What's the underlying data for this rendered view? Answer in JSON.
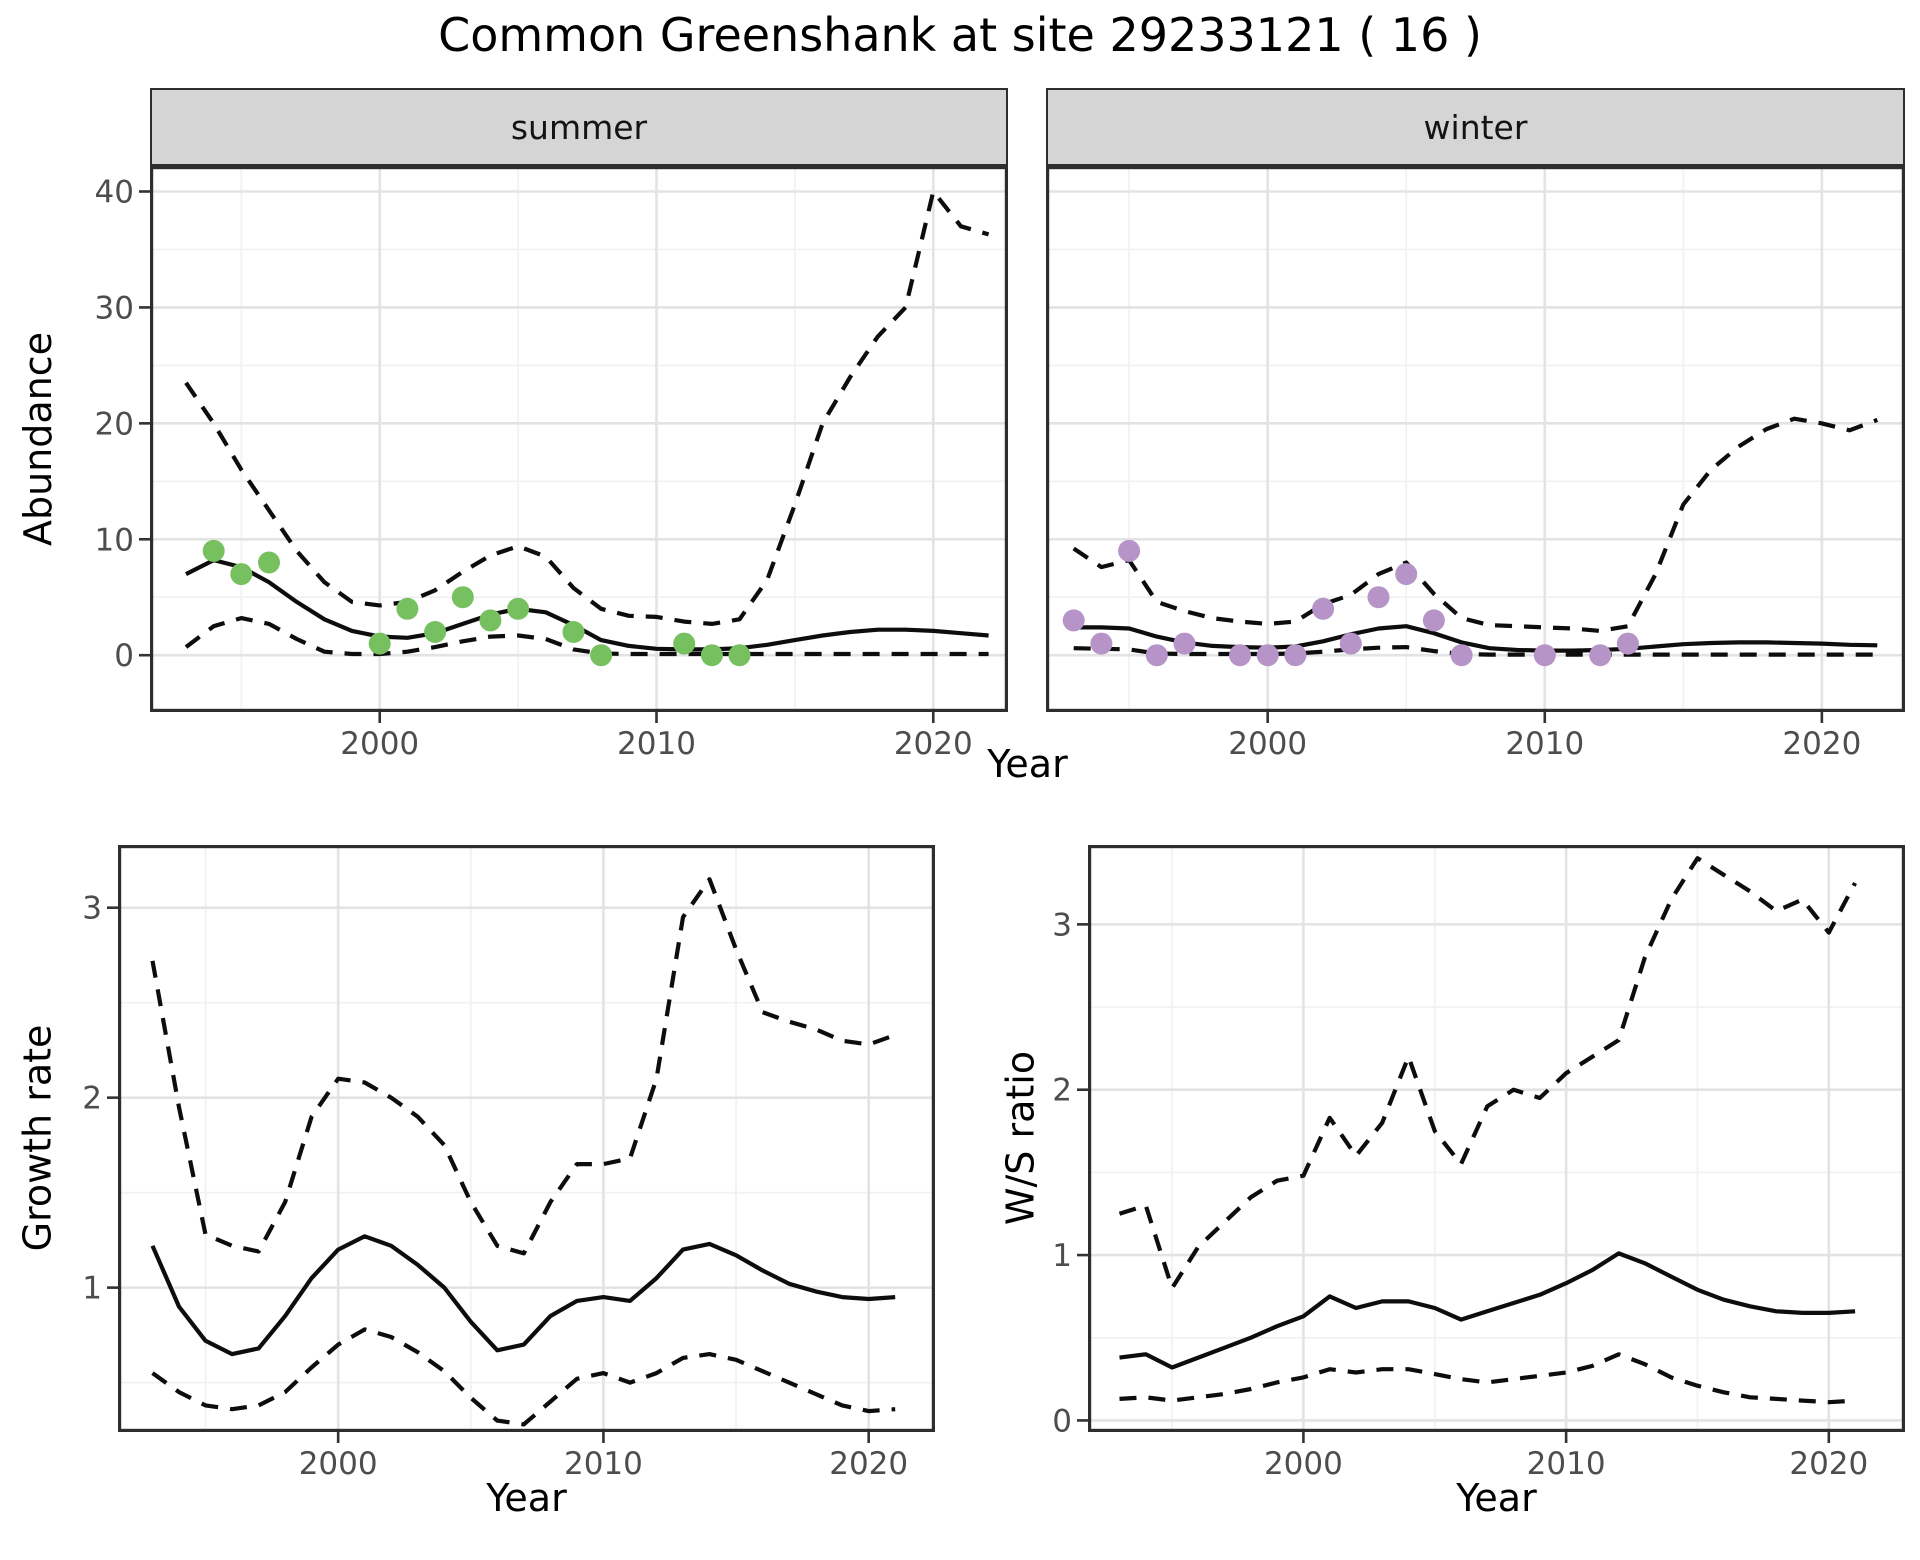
{
  "title": "Common Greenshank at site 29233121 ( 16 )",
  "colors": {
    "background": "#FFFFFF",
    "line": "#0D0D0D",
    "grid_major": "#E3E3E3",
    "grid_minor": "#F1F1F1",
    "panel_border": "#2E2E2E",
    "strip_bg": "#D5D5D5",
    "tick_mark": "#333333",
    "tick_text": "#4D4D4D",
    "summer_points": "#77C060",
    "winter_points": "#B694C7"
  },
  "chart_data": {
    "type": "line",
    "title": "Common Greenshank at site 29233121 ( 16 )",
    "grid": "on",
    "legend": "none",
    "panels": [
      {
        "id": "abundance-summer",
        "facet": "summer",
        "ylabel": "Abundance",
        "xlabel": "Year",
        "xlim": [
          1991.7,
          2022.7
        ],
        "ylim": [
          -4.9,
          42.2
        ],
        "xticks": [
          2000,
          2010,
          2020
        ],
        "yticks": [
          0,
          10,
          20,
          30,
          40
        ],
        "series_years": [
          1993,
          1994,
          1995,
          1996,
          1997,
          1998,
          1999,
          2000,
          2001,
          2002,
          2003,
          2004,
          2005,
          2006,
          2007,
          2008,
          2009,
          2010,
          2011,
          2012,
          2013,
          2014,
          2015,
          2016,
          2017,
          2018,
          2019,
          2020,
          2021,
          2022
        ],
        "series": {
          "fit": {
            "style": "solid",
            "values": [
              7.0,
              8.2,
              7.6,
              6.3,
              4.6,
              3.1,
              2.1,
              1.6,
              1.5,
              1.9,
              2.7,
              3.5,
              4.0,
              3.7,
              2.6,
              1.3,
              0.8,
              0.55,
              0.5,
              0.5,
              0.6,
              0.9,
              1.3,
              1.7,
              2.0,
              2.2,
              2.2,
              2.1,
              1.9,
              1.7
            ]
          },
          "upper_ci": {
            "style": "dashed",
            "values": [
              23.5,
              20.0,
              16.0,
              12.5,
              9.0,
              6.3,
              4.6,
              4.3,
              4.6,
              5.6,
              7.2,
              8.6,
              9.4,
              8.5,
              5.8,
              4.0,
              3.4,
              3.3,
              2.9,
              2.7,
              3.1,
              6.5,
              13.0,
              20.0,
              24.0,
              27.5,
              30.0,
              40.0,
              37.0,
              36.3
            ]
          },
          "lower_ci": {
            "style": "dashed",
            "values": [
              0.7,
              2.5,
              3.2,
              2.7,
              1.4,
              0.3,
              0.1,
              0.1,
              0.3,
              0.7,
              1.2,
              1.6,
              1.7,
              1.4,
              0.5,
              0.15,
              0.1,
              0.1,
              0.1,
              0.1,
              0.1,
              0.1,
              0.1,
              0.1,
              0.1,
              0.1,
              0.1,
              0.1,
              0.1,
              0.1
            ]
          }
        },
        "observations": {
          "color_key": "summer_points",
          "years": [
            1994,
            1995,
            1996,
            2000,
            2001,
            2002,
            2003,
            2004,
            2005,
            2007,
            2008,
            2011,
            2012,
            2013
          ],
          "values": [
            9,
            7,
            8,
            1,
            4,
            2,
            5,
            3,
            4,
            2,
            0,
            1,
            0,
            0
          ]
        }
      },
      {
        "id": "abundance-winter",
        "facet": "winter",
        "xlabel": "Year",
        "xlim": [
          1992,
          2023
        ],
        "ylim": [
          -4.9,
          42.2
        ],
        "xticks": [
          2000,
          2010,
          2020
        ],
        "yticks": [
          0,
          10,
          20,
          30,
          40
        ],
        "series_years": [
          1993,
          1994,
          1995,
          1996,
          1997,
          1998,
          1999,
          2000,
          2001,
          2002,
          2003,
          2004,
          2005,
          2006,
          2007,
          2008,
          2009,
          2010,
          2011,
          2012,
          2013,
          2014,
          2015,
          2016,
          2017,
          2018,
          2019,
          2020,
          2021,
          2022
        ],
        "series": {
          "fit": {
            "style": "solid",
            "values": [
              2.4,
              2.4,
              2.3,
              1.6,
              1.1,
              0.8,
              0.7,
              0.65,
              0.75,
              1.2,
              1.8,
              2.3,
              2.5,
              1.9,
              1.1,
              0.6,
              0.45,
              0.4,
              0.4,
              0.45,
              0.55,
              0.75,
              0.95,
              1.05,
              1.1,
              1.1,
              1.05,
              1.0,
              0.9,
              0.85
            ]
          },
          "upper_ci": {
            "style": "dashed",
            "values": [
              9.2,
              7.6,
              8.2,
              4.6,
              3.8,
              3.2,
              2.9,
              2.7,
              2.9,
              4.4,
              5.2,
              7.0,
              8.0,
              5.3,
              3.2,
              2.6,
              2.5,
              2.4,
              2.3,
              2.1,
              2.5,
              7.0,
              13.0,
              16.0,
              18.0,
              19.5,
              20.4,
              20.0,
              19.4,
              20.3
            ]
          },
          "lower_ci": {
            "style": "dashed",
            "values": [
              0.6,
              0.55,
              0.5,
              0.15,
              0.1,
              0.1,
              0.1,
              0.1,
              0.15,
              0.3,
              0.5,
              0.65,
              0.7,
              0.35,
              0.1,
              0.05,
              0.05,
              0.05,
              0.05,
              0.05,
              0.05,
              0.05,
              0.05,
              0.05,
              0.05,
              0.05,
              0.05,
              0.05,
              0.05,
              0.05
            ]
          }
        },
        "observations": {
          "color_key": "winter_points",
          "years": [
            1993,
            1994,
            1995,
            1996,
            1997,
            1999,
            2000,
            2001,
            2002,
            2003,
            2004,
            2005,
            2006,
            2007,
            2010,
            2012,
            2013
          ],
          "values": [
            3,
            1,
            9,
            0,
            1,
            0,
            0,
            0,
            4,
            1,
            5,
            7,
            3,
            0,
            0,
            0,
            1
          ]
        }
      },
      {
        "id": "growth",
        "ylabel": "Growth rate",
        "xlabel": "Year",
        "xlim": [
          1991.7,
          2022.5
        ],
        "ylim": [
          0.24,
          3.33
        ],
        "xticks": [
          2000,
          2010,
          2020
        ],
        "yticks": [
          1,
          2,
          3
        ],
        "series_years": [
          1993,
          1994,
          1995,
          1996,
          1997,
          1998,
          1999,
          2000,
          2001,
          2002,
          2003,
          2004,
          2005,
          2006,
          2007,
          2008,
          2009,
          2010,
          2011,
          2012,
          2013,
          2014,
          2015,
          2016,
          2017,
          2018,
          2019,
          2020,
          2021
        ],
        "series": {
          "fit": {
            "style": "solid",
            "values": [
              1.22,
              0.9,
              0.72,
              0.65,
              0.68,
              0.85,
              1.05,
              1.2,
              1.27,
              1.22,
              1.12,
              1.0,
              0.82,
              0.67,
              0.7,
              0.85,
              0.93,
              0.95,
              0.93,
              1.05,
              1.2,
              1.23,
              1.17,
              1.09,
              1.02,
              0.98,
              0.95,
              0.94,
              0.95
            ]
          },
          "upper_ci": {
            "style": "dashed",
            "values": [
              2.72,
              1.95,
              1.28,
              1.22,
              1.19,
              1.45,
              1.9,
              2.1,
              2.08,
              2.0,
              1.9,
              1.75,
              1.45,
              1.22,
              1.18,
              1.45,
              1.65,
              1.65,
              1.68,
              2.1,
              2.95,
              3.15,
              2.78,
              2.45,
              2.4,
              2.36,
              2.3,
              2.28,
              2.33
            ]
          },
          "lower_ci": {
            "style": "dashed",
            "values": [
              0.55,
              0.45,
              0.38,
              0.36,
              0.38,
              0.45,
              0.58,
              0.7,
              0.78,
              0.74,
              0.66,
              0.56,
              0.42,
              0.3,
              0.28,
              0.4,
              0.52,
              0.55,
              0.5,
              0.55,
              0.63,
              0.65,
              0.62,
              0.56,
              0.5,
              0.44,
              0.38,
              0.35,
              0.36
            ]
          }
        }
      },
      {
        "id": "ws",
        "ylabel": "W/S ratio",
        "xlabel": "Year",
        "xlim": [
          1991.8,
          2022.9
        ],
        "ylim": [
          -0.07,
          3.48
        ],
        "xticks": [
          2000,
          2010,
          2020
        ],
        "yticks": [
          0,
          1,
          2,
          3
        ],
        "series_years": [
          1993,
          1994,
          1995,
          1996,
          1997,
          1998,
          1999,
          2000,
          2001,
          2002,
          2003,
          2004,
          2005,
          2006,
          2007,
          2008,
          2009,
          2010,
          2011,
          2012,
          2013,
          2014,
          2015,
          2016,
          2017,
          2018,
          2019,
          2020,
          2021
        ],
        "series": {
          "fit": {
            "style": "solid",
            "values": [
              0.38,
              0.4,
              0.32,
              0.38,
              0.44,
              0.5,
              0.57,
              0.63,
              0.75,
              0.68,
              0.72,
              0.72,
              0.68,
              0.61,
              0.66,
              0.71,
              0.76,
              0.83,
              0.91,
              1.01,
              0.95,
              0.87,
              0.79,
              0.73,
              0.69,
              0.66,
              0.65,
              0.65,
              0.66
            ]
          },
          "upper_ci": {
            "style": "dashed",
            "values": [
              1.25,
              1.3,
              0.8,
              1.05,
              1.2,
              1.35,
              1.45,
              1.48,
              1.83,
              1.6,
              1.8,
              2.2,
              1.75,
              1.55,
              1.9,
              2.0,
              1.95,
              2.1,
              2.2,
              2.3,
              2.8,
              3.15,
              3.4,
              3.3,
              3.2,
              3.08,
              3.15,
              2.95,
              3.25
            ]
          },
          "lower_ci": {
            "style": "dashed",
            "values": [
              0.13,
              0.14,
              0.12,
              0.14,
              0.16,
              0.19,
              0.23,
              0.26,
              0.31,
              0.29,
              0.31,
              0.31,
              0.28,
              0.25,
              0.23,
              0.25,
              0.27,
              0.29,
              0.33,
              0.4,
              0.34,
              0.26,
              0.21,
              0.17,
              0.14,
              0.13,
              0.12,
              0.11,
              0.12
            ]
          }
        }
      }
    ]
  }
}
